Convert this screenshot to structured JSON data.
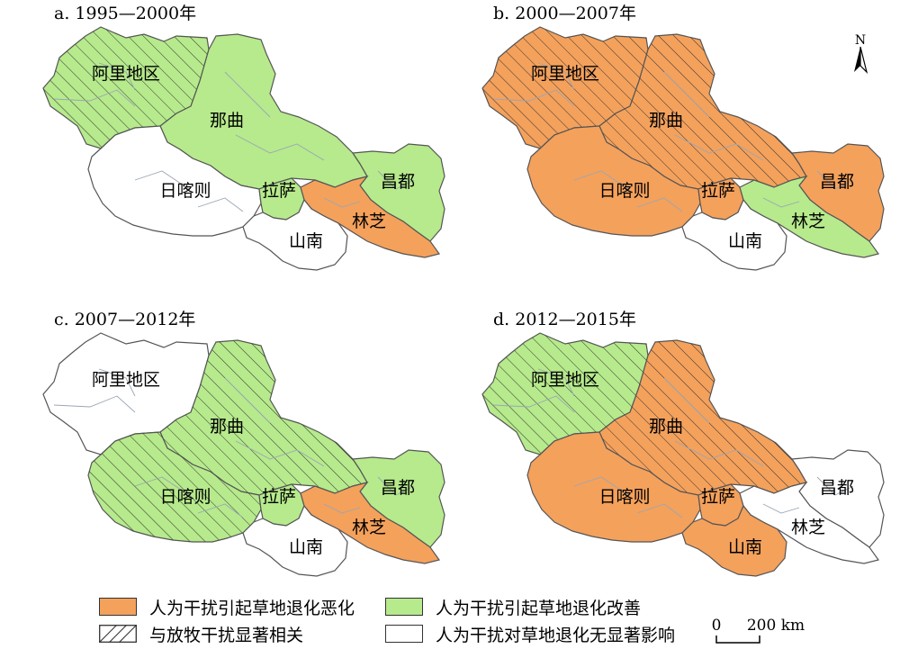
{
  "colors": {
    "worsening": "#f4a15c",
    "improving": "#b6ea8c",
    "no_effect": "#ffffff",
    "border": "#555555",
    "inner_border": "#9aa6b4"
  },
  "region_labels": {
    "ali": "阿里地区",
    "naqu": "那曲",
    "rikaze": "日喀则",
    "lasa": "拉萨",
    "changdu": "昌都",
    "linzhi": "林芝",
    "shannan": "山南"
  },
  "panels": [
    {
      "title": "a. 1995—2000年",
      "regions": {
        "ali": {
          "category": "improving",
          "hatched": true
        },
        "naqu": {
          "category": "improving",
          "hatched": false
        },
        "rikaze": {
          "category": "no_effect",
          "hatched": false
        },
        "lasa": {
          "category": "improving",
          "hatched": false
        },
        "changdu": {
          "category": "improving",
          "hatched": false
        },
        "linzhi": {
          "category": "worsening",
          "hatched": false
        },
        "shannan": {
          "category": "no_effect",
          "hatched": false
        }
      }
    },
    {
      "title": "b. 2000—2007年",
      "regions": {
        "ali": {
          "category": "worsening",
          "hatched": true
        },
        "naqu": {
          "category": "worsening",
          "hatched": true
        },
        "rikaze": {
          "category": "worsening",
          "hatched": false
        },
        "lasa": {
          "category": "worsening",
          "hatched": false
        },
        "changdu": {
          "category": "worsening",
          "hatched": false
        },
        "linzhi": {
          "category": "improving",
          "hatched": false
        },
        "shannan": {
          "category": "no_effect",
          "hatched": false
        }
      }
    },
    {
      "title": "c. 2007—2012年",
      "regions": {
        "ali": {
          "category": "no_effect",
          "hatched": false
        },
        "naqu": {
          "category": "improving",
          "hatched": true
        },
        "rikaze": {
          "category": "improving",
          "hatched": true
        },
        "lasa": {
          "category": "improving",
          "hatched": false
        },
        "changdu": {
          "category": "improving",
          "hatched": false
        },
        "linzhi": {
          "category": "worsening",
          "hatched": false
        },
        "shannan": {
          "category": "no_effect",
          "hatched": false
        }
      }
    },
    {
      "title": "d. 2012—2015年",
      "regions": {
        "ali": {
          "category": "improving",
          "hatched": true
        },
        "naqu": {
          "category": "worsening",
          "hatched": true
        },
        "rikaze": {
          "category": "worsening",
          "hatched": false
        },
        "lasa": {
          "category": "worsening",
          "hatched": false
        },
        "changdu": {
          "category": "no_effect",
          "hatched": false
        },
        "linzhi": {
          "category": "no_effect",
          "hatched": false
        },
        "shannan": {
          "category": "worsening",
          "hatched": false
        }
      }
    }
  ],
  "legend": {
    "worsening": "人为干扰引起草地退化恶化",
    "improving": "人为干扰引起草地退化改善",
    "grazing": "与放牧干扰显著相关",
    "no_effect": "人为干扰对草地退化无显著影响"
  },
  "scale_bar": {
    "start": "0",
    "end": "200 km"
  },
  "north_arrow": {
    "label": "N"
  }
}
